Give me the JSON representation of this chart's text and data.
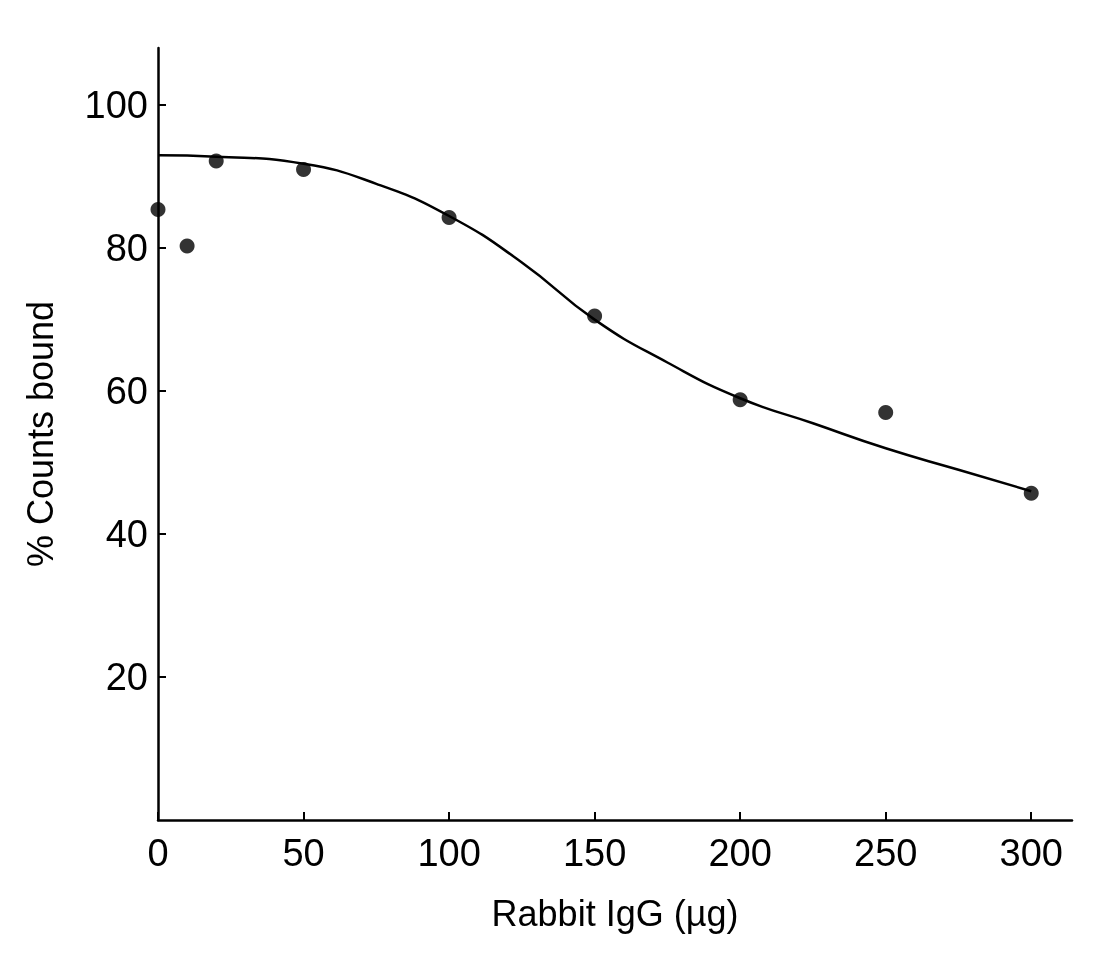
{
  "chart_data": {
    "type": "scatter",
    "xlabel": "Rabbit IgG (µg)",
    "ylabel": "% Counts bound",
    "xlim": [
      0,
      314
    ],
    "xticks": [
      0,
      50,
      100,
      150,
      200,
      250,
      300
    ],
    "ylim": [
      0,
      108
    ],
    "yticks": [
      20,
      40,
      60,
      80,
      100
    ],
    "grid": false,
    "marker": "circle",
    "series": [
      {
        "color": "#000000",
        "x": [
          0,
          10,
          20,
          50,
          100,
          150,
          200,
          250,
          300
        ],
        "values": [
          85.4,
          80.3,
          92.2,
          91,
          84.3,
          70.5,
          58.8,
          57,
          45.7
        ]
      },
      {
        "type": "line",
        "marker": "none",
        "color": "#000000",
        "x": [
          0,
          20,
          50,
          75,
          100,
          125,
          150,
          175,
          200,
          225,
          250,
          275,
          300
        ],
        "values": [
          93,
          92.8,
          91.8,
          89,
          84.5,
          78,
          70,
          64,
          59,
          55.5,
          52,
          49,
          46
        ]
      }
    ]
  }
}
